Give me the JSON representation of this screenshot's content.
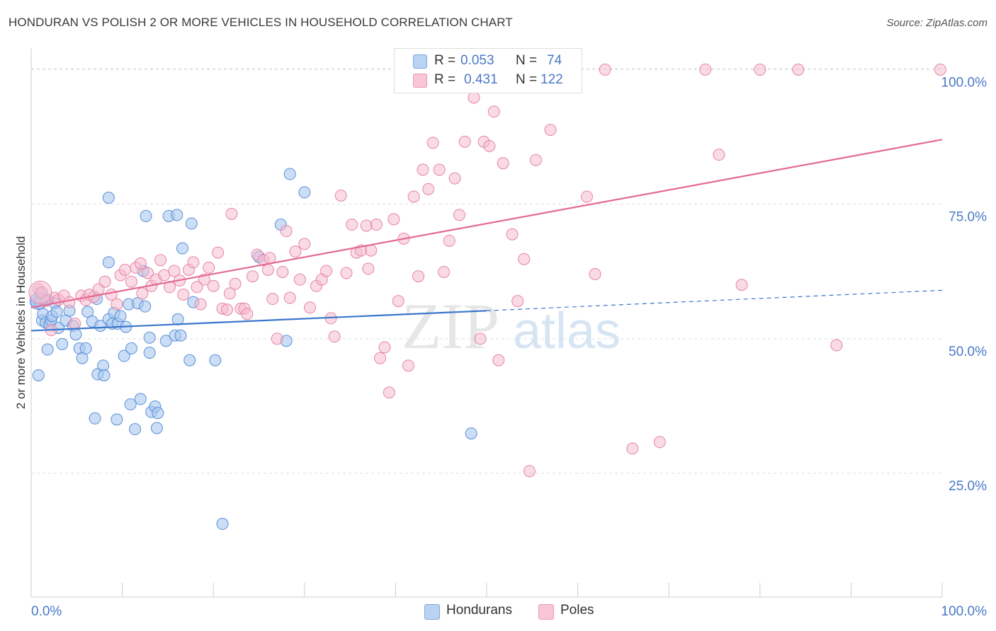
{
  "title": "HONDURAN VS POLISH 2 OR MORE VEHICLES IN HOUSEHOLD CORRELATION CHART",
  "source": "Source: ZipAtlas.com",
  "watermark": {
    "zip": "ZIP",
    "atlas": "atlas"
  },
  "legend": {
    "hondurans": {
      "r_label": "R =",
      "r_value": "0.053",
      "n_label": "N =",
      "n_value": "74"
    },
    "poles": {
      "r_label": "R =",
      "r_value": "0.431",
      "n_label": "N =",
      "n_value": "122"
    }
  },
  "bottom_legend": {
    "hondurans": "Hondurans",
    "poles": "Poles"
  },
  "colors": {
    "honduran_fill": "#a9c8f0",
    "honduran_stroke": "#5b8fd6",
    "honduran_line": "#3a76cc",
    "pole_fill": "#f6bcd0",
    "pole_stroke": "#e585a6",
    "pole_line": "#e46a94",
    "tick_text": "#4a78c8",
    "grid": "#dddddd"
  },
  "chart_data": {
    "type": "scatter",
    "title": "HONDURAN VS POLISH 2 OR MORE VEHICLES IN HOUSEHOLD CORRELATION CHART",
    "xlabel": "",
    "ylabel": "2 or more Vehicles in Household",
    "xlim": [
      0,
      100
    ],
    "ylim": [
      2,
      104
    ],
    "x_tick_labels": [
      "0.0%",
      "100.0%"
    ],
    "y_tick_labels": [
      "25.0%",
      "50.0%",
      "75.0%",
      "100.0%"
    ],
    "y_ticks": [
      25,
      50,
      75,
      100
    ],
    "grid": true,
    "series": [
      {
        "name": "Hondurans",
        "R": 0.053,
        "N": 74,
        "trend": {
          "x0": 0,
          "y0": 51.5,
          "x1": 50,
          "y1": 55.2,
          "dashed_to_x": 100,
          "dashed_to_y": 59.0
        },
        "points": [
          [
            0.6,
            56.8
          ],
          [
            0.8,
            43.2
          ],
          [
            1.0,
            58.5
          ],
          [
            1.2,
            53.4
          ],
          [
            1.3,
            54.6
          ],
          [
            1.6,
            53.0
          ],
          [
            1.8,
            48.0
          ],
          [
            1.8,
            57.2
          ],
          [
            2.0,
            52.6
          ],
          [
            2.2,
            53.4
          ],
          [
            2.3,
            54.2
          ],
          [
            2.6,
            56.6
          ],
          [
            2.8,
            55.0
          ],
          [
            3.0,
            52.0
          ],
          [
            3.4,
            49.0
          ],
          [
            3.8,
            53.4
          ],
          [
            4.2,
            55.2
          ],
          [
            4.6,
            52.4
          ],
          [
            4.9,
            50.8
          ],
          [
            5.3,
            48.2
          ],
          [
            5.6,
            46.4
          ],
          [
            6.0,
            48.2
          ],
          [
            6.2,
            55.0
          ],
          [
            6.7,
            53.2
          ],
          [
            7.0,
            35.2
          ],
          [
            7.2,
            57.4
          ],
          [
            7.3,
            43.4
          ],
          [
            7.6,
            52.4
          ],
          [
            7.9,
            45.0
          ],
          [
            8.0,
            43.2
          ],
          [
            8.5,
            53.6
          ],
          [
            8.5,
            76.2
          ],
          [
            8.5,
            64.2
          ],
          [
            8.9,
            52.8
          ],
          [
            9.1,
            54.8
          ],
          [
            9.4,
            35.0
          ],
          [
            9.5,
            52.8
          ],
          [
            9.8,
            54.2
          ],
          [
            10.2,
            46.8
          ],
          [
            10.4,
            52.2
          ],
          [
            10.7,
            56.4
          ],
          [
            10.9,
            37.8
          ],
          [
            11.0,
            48.2
          ],
          [
            11.4,
            33.2
          ],
          [
            11.7,
            56.6
          ],
          [
            12.0,
            38.8
          ],
          [
            12.3,
            62.6
          ],
          [
            12.5,
            56.0
          ],
          [
            12.6,
            72.8
          ],
          [
            13.0,
            50.2
          ],
          [
            13.0,
            47.4
          ],
          [
            13.2,
            36.4
          ],
          [
            13.6,
            37.4
          ],
          [
            13.9,
            36.2
          ],
          [
            13.8,
            33.4
          ],
          [
            14.8,
            49.6
          ],
          [
            15.1,
            72.8
          ],
          [
            15.8,
            50.6
          ],
          [
            16.0,
            73.0
          ],
          [
            16.1,
            53.6
          ],
          [
            16.4,
            50.6
          ],
          [
            16.6,
            66.8
          ],
          [
            17.4,
            46.0
          ],
          [
            17.6,
            71.4
          ],
          [
            17.8,
            56.8
          ],
          [
            20.2,
            46.0
          ],
          [
            21.0,
            15.6
          ],
          [
            25.0,
            65.2
          ],
          [
            28.0,
            49.6
          ],
          [
            27.4,
            71.2
          ],
          [
            28.4,
            80.6
          ],
          [
            30.0,
            77.2
          ],
          [
            48.3,
            32.4
          ],
          [
            0.9,
            56.6
          ]
        ]
      },
      {
        "name": "Poles",
        "R": 0.431,
        "N": 122,
        "trend": {
          "x0": 0,
          "y0": 55.8,
          "x1": 100,
          "y1": 87.0
        },
        "points": [
          [
            0.8,
            59.2
          ],
          [
            1.2,
            58.6
          ],
          [
            1.6,
            57.0
          ],
          [
            2.2,
            51.6
          ],
          [
            2.6,
            57.6
          ],
          [
            3.0,
            57.2
          ],
          [
            3.6,
            58.0
          ],
          [
            4.2,
            56.8
          ],
          [
            4.8,
            52.8
          ],
          [
            5.5,
            58.0
          ],
          [
            6.0,
            57.2
          ],
          [
            6.4,
            58.2
          ],
          [
            6.9,
            57.8
          ],
          [
            7.4,
            59.2
          ],
          [
            8.1,
            60.6
          ],
          [
            8.8,
            58.2
          ],
          [
            9.4,
            56.4
          ],
          [
            9.8,
            61.8
          ],
          [
            10.3,
            62.8
          ],
          [
            11.0,
            60.6
          ],
          [
            11.5,
            63.2
          ],
          [
            12.2,
            58.4
          ],
          [
            12.8,
            62.2
          ],
          [
            13.2,
            59.8
          ],
          [
            13.7,
            61.0
          ],
          [
            14.2,
            64.6
          ],
          [
            14.6,
            61.8
          ],
          [
            15.2,
            59.6
          ],
          [
            15.7,
            62.6
          ],
          [
            16.3,
            60.8
          ],
          [
            16.7,
            58.2
          ],
          [
            17.3,
            62.8
          ],
          [
            17.8,
            64.2
          ],
          [
            18.6,
            56.4
          ],
          [
            19.0,
            61.0
          ],
          [
            19.5,
            63.2
          ],
          [
            20.0,
            59.8
          ],
          [
            20.5,
            66.0
          ],
          [
            21.0,
            55.6
          ],
          [
            21.5,
            55.4
          ],
          [
            22.0,
            73.2
          ],
          [
            22.4,
            60.2
          ],
          [
            23.0,
            55.6
          ],
          [
            23.4,
            55.6
          ],
          [
            23.7,
            54.6
          ],
          [
            24.3,
            61.6
          ],
          [
            24.8,
            65.6
          ],
          [
            25.5,
            64.6
          ],
          [
            26.0,
            62.8
          ],
          [
            26.5,
            57.4
          ],
          [
            27.0,
            50.0
          ],
          [
            27.6,
            62.4
          ],
          [
            28.0,
            70.0
          ],
          [
            28.4,
            57.6
          ],
          [
            29.0,
            66.2
          ],
          [
            29.5,
            61.0
          ],
          [
            30.0,
            67.6
          ],
          [
            30.6,
            55.8
          ],
          [
            31.3,
            59.8
          ],
          [
            31.9,
            61.0
          ],
          [
            32.4,
            62.6
          ],
          [
            32.9,
            53.8
          ],
          [
            33.3,
            50.4
          ],
          [
            34.0,
            76.6
          ],
          [
            34.6,
            62.2
          ],
          [
            35.2,
            71.2
          ],
          [
            35.7,
            66.0
          ],
          [
            36.2,
            66.4
          ],
          [
            36.8,
            71.0
          ],
          [
            37.3,
            66.4
          ],
          [
            37.9,
            71.2
          ],
          [
            38.3,
            46.4
          ],
          [
            38.8,
            48.4
          ],
          [
            39.3,
            40.0
          ],
          [
            39.8,
            72.2
          ],
          [
            40.3,
            57.0
          ],
          [
            40.9,
            68.6
          ],
          [
            41.4,
            45.0
          ],
          [
            42.0,
            76.4
          ],
          [
            42.5,
            61.6
          ],
          [
            43.0,
            81.4
          ],
          [
            43.6,
            77.8
          ],
          [
            44.1,
            86.4
          ],
          [
            44.8,
            81.4
          ],
          [
            45.3,
            62.4
          ],
          [
            45.9,
            68.2
          ],
          [
            46.5,
            79.8
          ],
          [
            47.0,
            73.0
          ],
          [
            47.6,
            86.6
          ],
          [
            48.2,
            100.0
          ],
          [
            48.6,
            94.8
          ],
          [
            49.0,
            100.0
          ],
          [
            49.7,
            86.6
          ],
          [
            50.3,
            85.8
          ],
          [
            50.8,
            92.2
          ],
          [
            51.3,
            46.0
          ],
          [
            51.8,
            82.6
          ],
          [
            52.8,
            69.4
          ],
          [
            53.4,
            57.0
          ],
          [
            54.1,
            64.8
          ],
          [
            54.7,
            25.4
          ],
          [
            55.4,
            83.2
          ],
          [
            57.0,
            88.8
          ],
          [
            61.0,
            76.4
          ],
          [
            61.9,
            62.0
          ],
          [
            63.0,
            100.0
          ],
          [
            66.0,
            29.6
          ],
          [
            69.0,
            30.8
          ],
          [
            74.0,
            100.0
          ],
          [
            75.5,
            84.2
          ],
          [
            78.0,
            60.0
          ],
          [
            80.0,
            100.0
          ],
          [
            84.2,
            100.0
          ],
          [
            88.4,
            48.8
          ],
          [
            99.8,
            100.0
          ],
          [
            37.0,
            63.0
          ],
          [
            26.2,
            65.0
          ],
          [
            21.8,
            58.4
          ],
          [
            49.3,
            50.0
          ],
          [
            18.2,
            59.6
          ],
          [
            12.0,
            64.0
          ]
        ]
      }
    ]
  }
}
